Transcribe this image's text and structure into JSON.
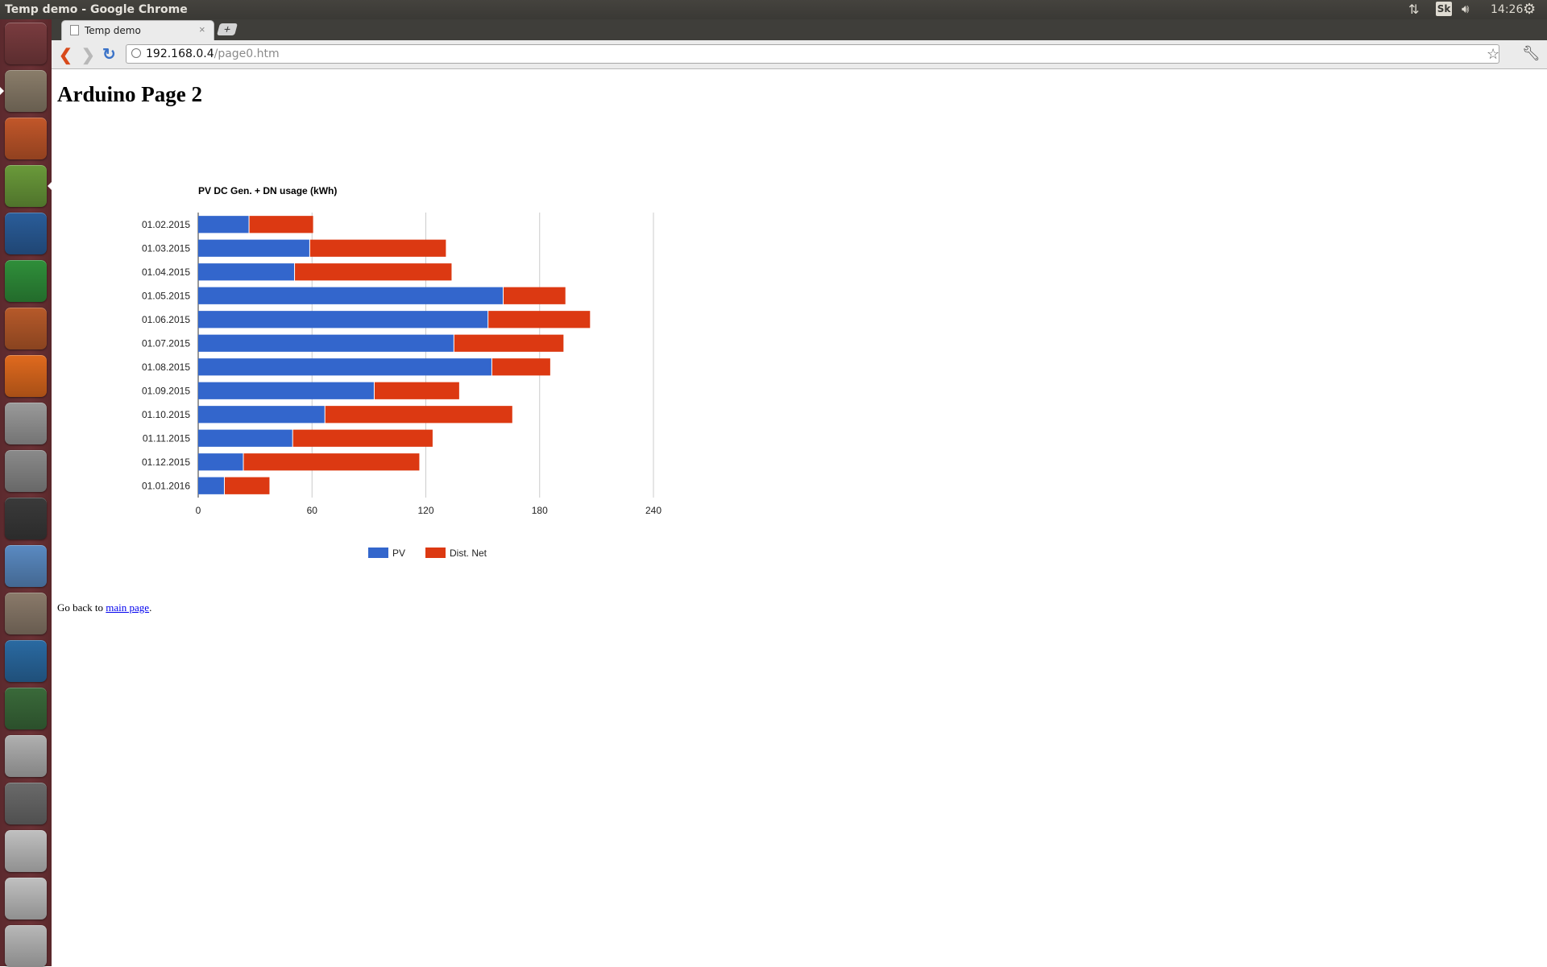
{
  "window": {
    "title": "Temp demo - Google Chrome"
  },
  "panel": {
    "clock": "14:26",
    "keyboard_layout": "Sk"
  },
  "launcher": {
    "items": [
      {
        "name": "dash-home-icon",
        "color": "#7a3c3f"
      },
      {
        "name": "file-manager-icon",
        "color": "#8a7d6a"
      },
      {
        "name": "firefox-icon",
        "color": "#c2572a"
      },
      {
        "name": "chrome-icon",
        "color": "#6a9a3a"
      },
      {
        "name": "writer-icon",
        "color": "#2a5d9a"
      },
      {
        "name": "calc-icon",
        "color": "#2f8f3a"
      },
      {
        "name": "impress-icon",
        "color": "#b75a2a"
      },
      {
        "name": "software-center-icon",
        "color": "#e06a1e"
      },
      {
        "name": "amazon-icon",
        "color": "#9a9a9a"
      },
      {
        "name": "system-settings-icon",
        "color": "#8a8a8a"
      },
      {
        "name": "terminal-icon",
        "color": "#3a3a3a"
      },
      {
        "name": "ubuntu-one-icon",
        "color": "#5a8ac2"
      },
      {
        "name": "gimp-icon",
        "color": "#8a7a6a"
      },
      {
        "name": "image-viewer-icon",
        "color": "#2a6aa2"
      },
      {
        "name": "software-updater-icon",
        "color": "#3a6a3a"
      },
      {
        "name": "drive-icon",
        "color": "#b0b0b0"
      },
      {
        "name": "floppy-icon",
        "color": "#6a6a6a"
      },
      {
        "name": "disk-icon",
        "color": "#c0c0c0"
      },
      {
        "name": "disk-icon-2",
        "color": "#c0c0c0"
      },
      {
        "name": "trash-icon",
        "color": "#b8b8b8"
      }
    ]
  },
  "browser": {
    "tab_title": "Temp demo",
    "tab_close": "×",
    "new_tab": "+",
    "url_host": "192.168.0.4",
    "url_path": "/page0.htm"
  },
  "page": {
    "heading": "Arduino Page 2",
    "footer_prefix": "Go back to ",
    "footer_link": "main page",
    "footer_suffix": "."
  },
  "chart_data": {
    "type": "bar",
    "orientation": "horizontal",
    "stacked": true,
    "title": "PV DC Gen. + DN usage (kWh)",
    "categories": [
      "01.02.2015",
      "01.03.2015",
      "01.04.2015",
      "01.05.2015",
      "01.06.2015",
      "01.07.2015",
      "01.08.2015",
      "01.09.2015",
      "01.10.2015",
      "01.11.2015",
      "01.12.2015",
      "01.01.2016"
    ],
    "series": [
      {
        "name": "PV",
        "color": "#3366cc",
        "values": [
          27,
          59,
          51,
          161,
          153,
          135,
          155,
          93,
          67,
          50,
          24,
          14
        ]
      },
      {
        "name": "Dist. Net",
        "color": "#dc3912",
        "values": [
          34,
          72,
          83,
          33,
          54,
          58,
          31,
          45,
          99,
          74,
          93,
          24
        ]
      }
    ],
    "xlim": [
      0,
      240
    ],
    "xticks": [
      0,
      60,
      120,
      180,
      240
    ],
    "grid": true,
    "legend_position": "bottom"
  }
}
